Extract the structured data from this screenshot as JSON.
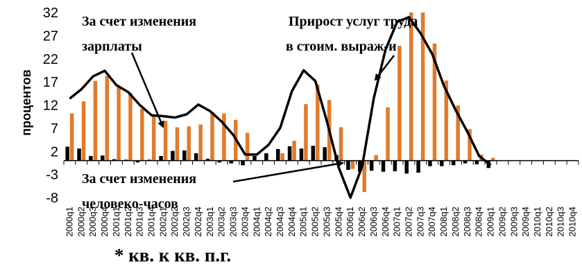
{
  "chart_data": {
    "type": "bar",
    "ylabel": "процентов",
    "yticks": [
      32,
      27,
      22,
      17,
      12,
      7,
      2,
      -3,
      -8
    ],
    "ylim": [
      -8,
      32
    ],
    "categories": [
      "2000q1",
      "2000q2",
      "2000q3",
      "2000q4",
      "2001q1",
      "2001q2",
      "2001q3",
      "2001q4",
      "2002q1",
      "2002q2",
      "2002q3",
      "2002q4",
      "2003q1",
      "2003q2",
      "2003q3",
      "2003q4",
      "2004q1",
      "2004q2",
      "2004q3",
      "2004q4",
      "2005q1",
      "2005q2",
      "2005q3",
      "2005q4",
      "2006q1",
      "2006q2",
      "2006q3",
      "2006q4",
      "2007q1",
      "2007q2",
      "2007q3",
      "2007q4",
      "2008q1",
      "2008q2",
      "2008q3",
      "2008q4",
      "2009q1",
      "2009q2",
      "2009q3",
      "2009q4",
      "2010q1",
      "2010q2",
      "2010q3",
      "2010q4"
    ],
    "series": [
      {
        "type": "bar",
        "color": "#e07b2c",
        "values": [
          10.2,
          12.8,
          17.2,
          18.3,
          16.0,
          14.6,
          11.2,
          9.6,
          8.6,
          7.2,
          7.4,
          7.8,
          10.5,
          10.2,
          8.8,
          6.0,
          null,
          null,
          1.6,
          4.3,
          12.2,
          16.4,
          13.1,
          7.2,
          -1.8,
          -6.8,
          1.2,
          11.5,
          24.8,
          32.0,
          32.0,
          25.3,
          17.3,
          11.9,
          6.8,
          1.3,
          0.6,
          null,
          null,
          null,
          null,
          null,
          null,
          null
        ]
      },
      {
        "type": "bar",
        "color": "#000000",
        "values": [
          3.0,
          2.6,
          1.0,
          1.1,
          0.3,
          0.2,
          -0.4,
          0.2,
          1.0,
          2.1,
          2.2,
          1.6,
          0.4,
          -0.4,
          -0.6,
          -1.0,
          1.0,
          1.6,
          2.5,
          3.1,
          2.6,
          3.2,
          2.9,
          1.2,
          -2.0,
          -2.4,
          -2.2,
          -2.4,
          -2.3,
          -2.8,
          -2.6,
          -1.2,
          -1.2,
          -1.0,
          -0.6,
          -0.8,
          -1.6,
          null,
          null,
          null,
          null,
          null,
          null,
          null
        ]
      },
      {
        "type": "line",
        "color": "#000000",
        "values": [
          13.4,
          15.4,
          18.2,
          19.4,
          16.3,
          14.8,
          12.0,
          9.8,
          9.6,
          9.3,
          10.0,
          12.1,
          10.7,
          8.4,
          5.5,
          1.3,
          1.3,
          3.4,
          7.1,
          15.0,
          19.5,
          17.2,
          8.4,
          -1.5,
          -8.0,
          -1.3,
          13.5,
          24.0,
          30.0,
          31.0,
          27.5,
          23.0,
          16.1,
          10.9,
          6.2,
          1.0,
          -1.0,
          null,
          null,
          null,
          null,
          null,
          null,
          null
        ]
      }
    ],
    "annotations": [
      {
        "id": "wage",
        "lines": [
          "За счет изменения",
          "зарплаты"
        ]
      },
      {
        "id": "growth",
        "lines": [
          "Прирост услуг труда",
          "в стоим. выраж-и"
        ]
      },
      {
        "id": "hours",
        "lines": [
          "За счет изменения",
          "человеко-часов"
        ]
      }
    ],
    "footnote": "* кв. к кв. п.г."
  }
}
